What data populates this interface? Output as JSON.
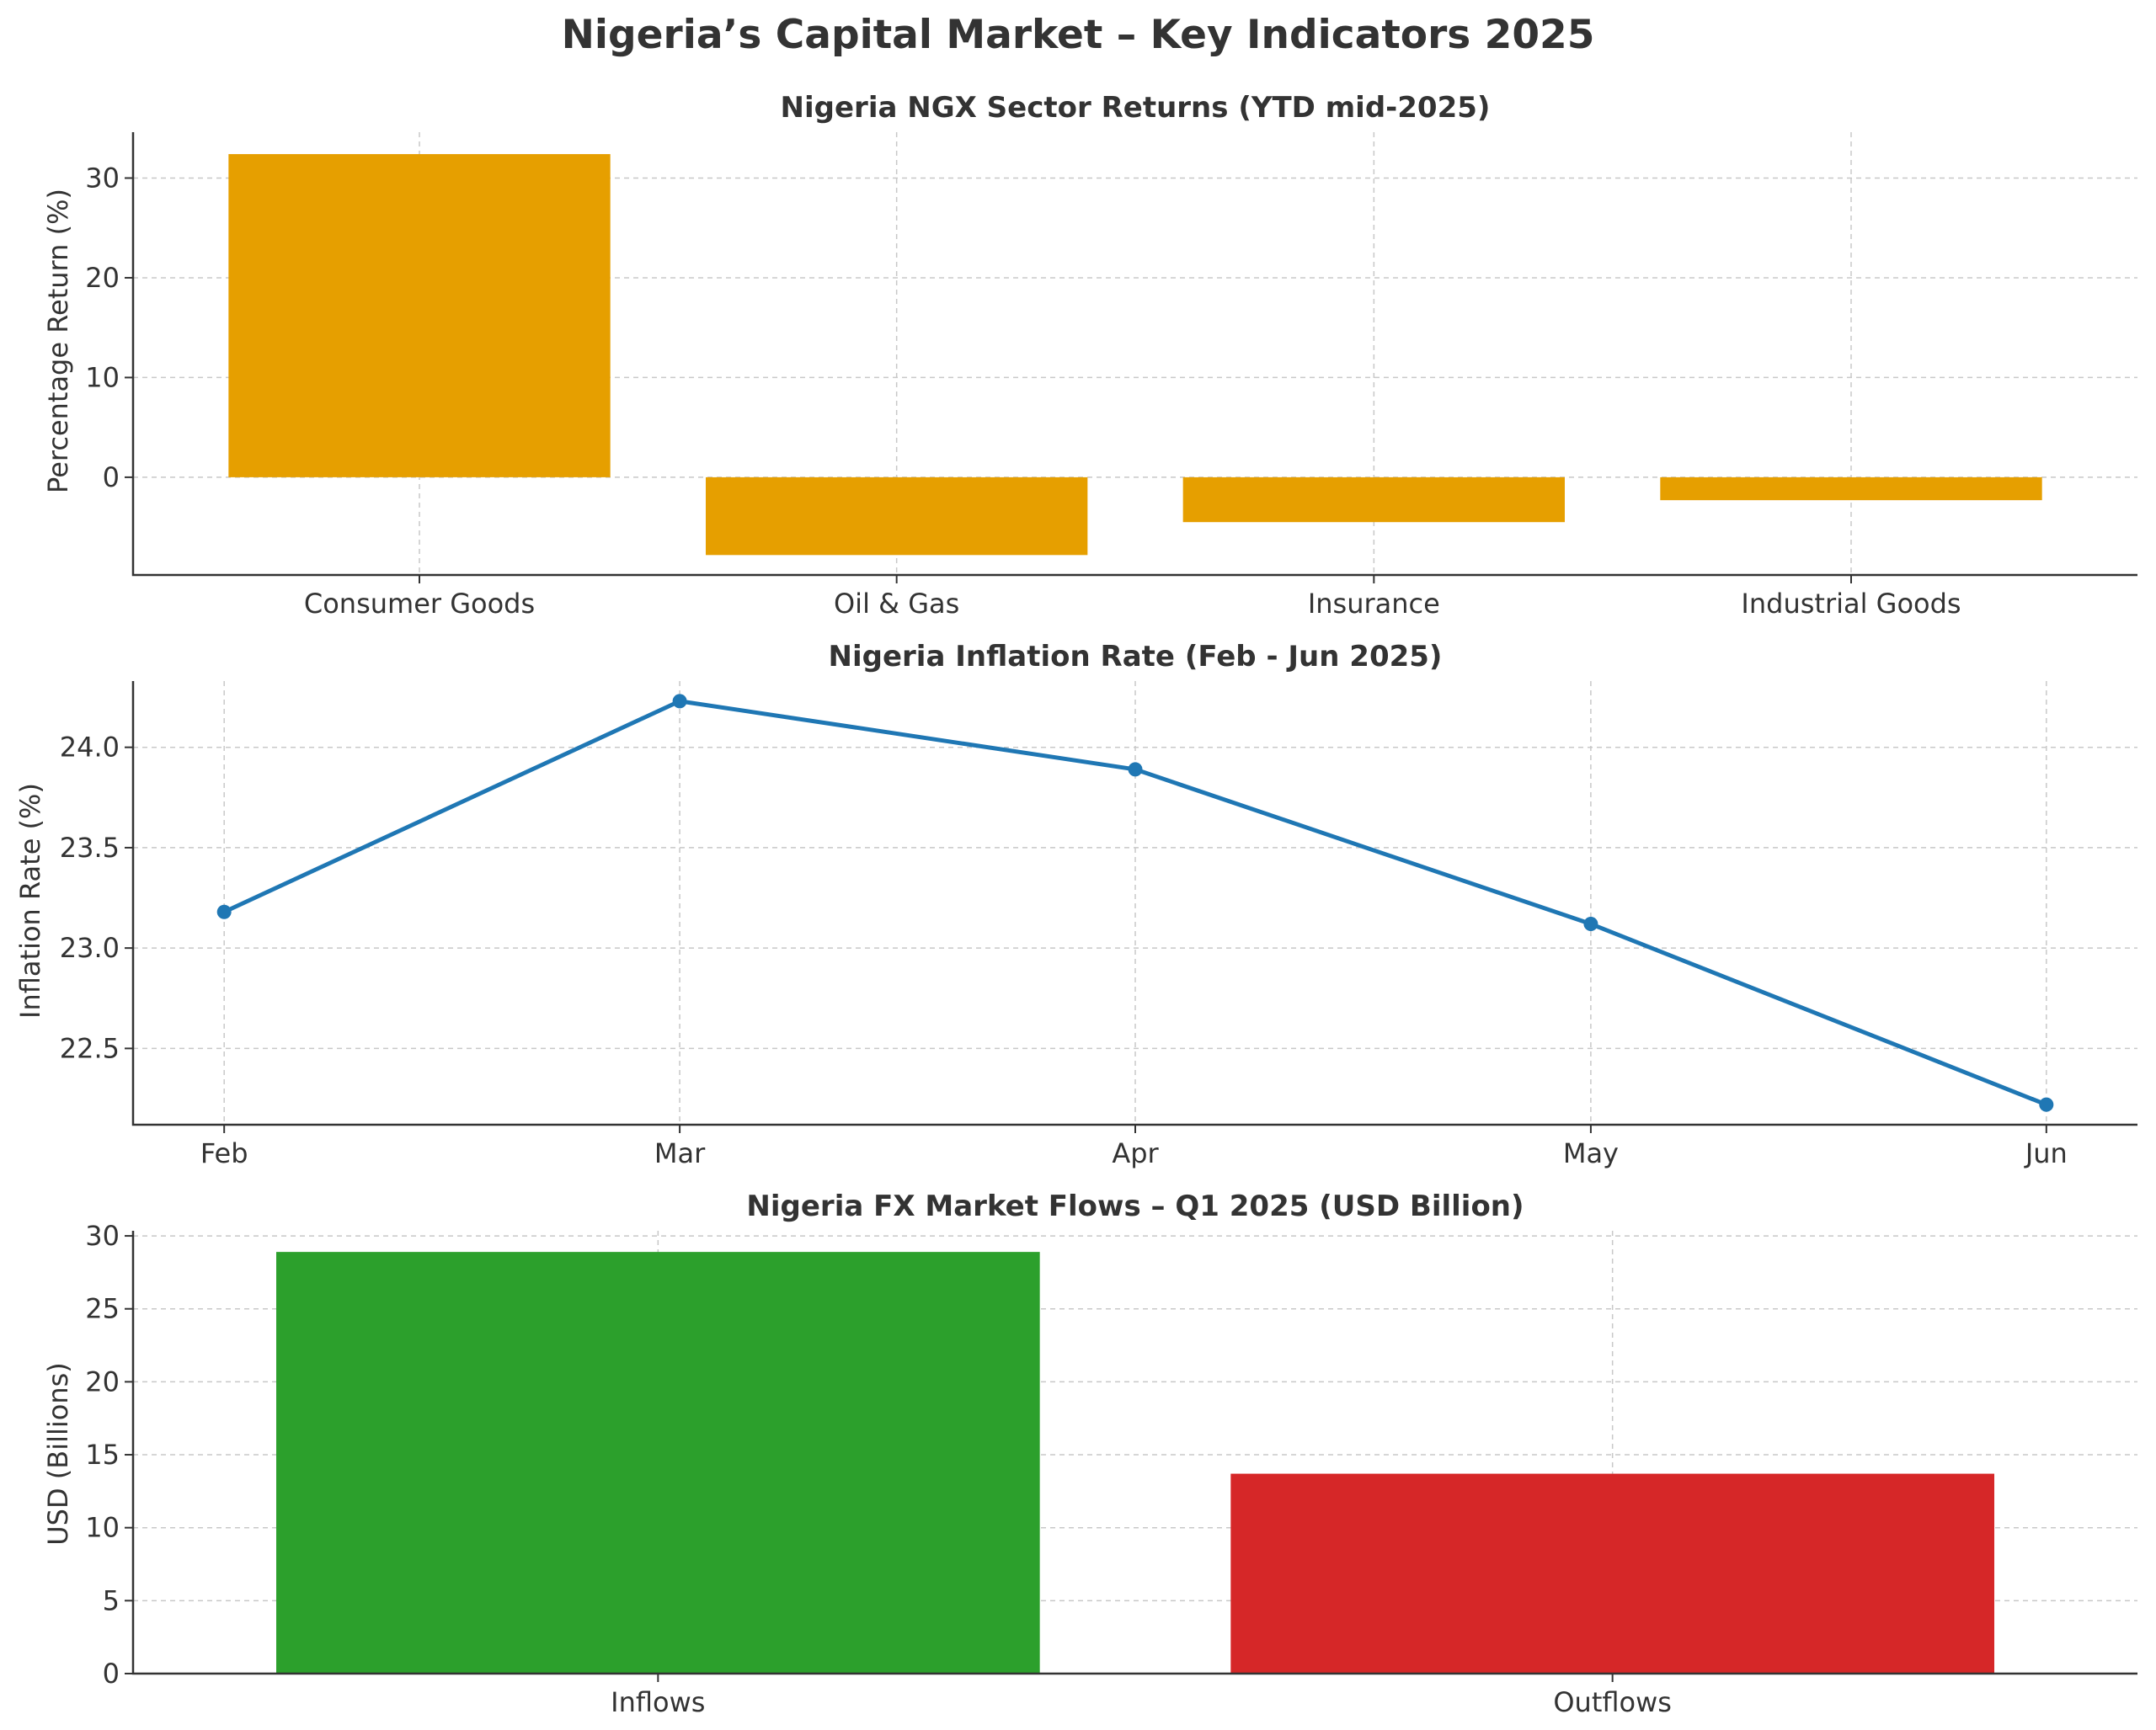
{
  "figure": {
    "suptitle": "Nigeria’s Capital Market – Key Indicators 2025"
  },
  "chart_data": [
    {
      "type": "bar",
      "title": "Nigeria NGX Sector Returns (YTD mid-2025)",
      "xlabel": "",
      "ylabel": "Percentage Return (%)",
      "categories": [
        "Consumer Goods",
        "Oil & Gas",
        "Insurance",
        "Industrial Goods"
      ],
      "values": [
        32.4,
        -7.8,
        -4.5,
        -2.3
      ],
      "colors": [
        "#E69F00",
        "#E69F00",
        "#E69F00",
        "#E69F00"
      ],
      "ylim": [
        -9.8,
        34.6
      ],
      "yticks": [
        0,
        10,
        20,
        30
      ],
      "grid": true
    },
    {
      "type": "line",
      "title": "Nigeria Inflation Rate (Feb - Jun 2025)",
      "xlabel": "",
      "ylabel": "Inflation Rate (%)",
      "categories": [
        "Feb",
        "Mar",
        "Apr",
        "May",
        "Jun"
      ],
      "values": [
        23.18,
        24.23,
        23.89,
        23.12,
        22.22
      ],
      "color": "#1F77B4",
      "marker": "circle",
      "ylim": [
        22.12,
        24.33
      ],
      "yticks": [
        22.5,
        23.0,
        23.5,
        24.0
      ],
      "ytick_labels": [
        "22.5",
        "23.0",
        "23.5",
        "24.0"
      ],
      "grid": true
    },
    {
      "type": "bar",
      "title": "Nigeria FX Market Flows – Q1 2025 (USD Billion)",
      "xlabel": "",
      "ylabel": "USD (Billions)",
      "categories": [
        "Inflows",
        "Outflows"
      ],
      "values": [
        28.9,
        13.7
      ],
      "colors": [
        "#2CA02C",
        "#D62728"
      ],
      "ylim": [
        0,
        30.35
      ],
      "yticks": [
        0,
        5,
        10,
        15,
        20,
        25,
        30
      ],
      "grid": true
    }
  ]
}
